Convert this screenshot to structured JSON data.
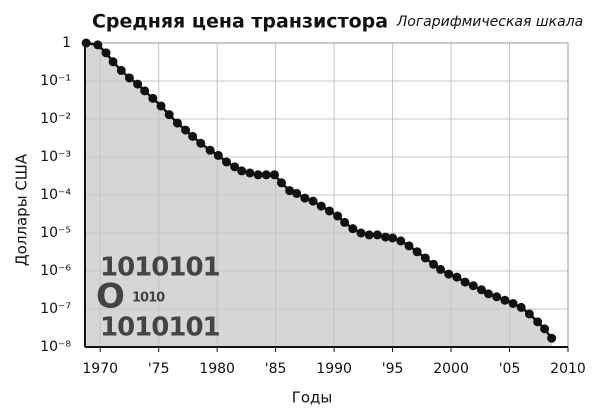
{
  "chart_data": {
    "type": "line",
    "title": "Средняя цена транзистора",
    "subtitle": "Логарифмическая шкала",
    "x_label": "Годы",
    "y_label": "Доллары США",
    "annotations": [
      "1010101",
      "O",
      "1010",
      "1010101"
    ],
    "log_y": true,
    "grid": true,
    "area": true,
    "series": [
      {
        "name": "Средняя цена транзистора",
        "color": "#111111",
        "fill": "#c8c8c8",
        "x": [
          1968.8,
          1969.8,
          1970.5,
          1971.1,
          1971.8,
          1972.5,
          1973.2,
          1973.8,
          1974.5,
          1975.2,
          1975.9,
          1976.6,
          1977.3,
          1977.9,
          1978.6,
          1979.4,
          1980.1,
          1980.8,
          1981.5,
          1982.1,
          1982.8,
          1983.5,
          1984.2,
          1984.9,
          1985.5,
          1986.2,
          1986.8,
          1987.5,
          1988.2,
          1988.9,
          1989.6,
          1990.3,
          1990.9,
          1991.6,
          1992.3,
          1993.0,
          1993.7,
          1994.4,
          1995.0,
          1995.7,
          1996.4,
          1997.1,
          1997.8,
          1998.5,
          1999.1,
          1999.8,
          2000.5,
          2001.2,
          2001.9,
          2002.6,
          2003.2,
          2003.9,
          2004.6,
          2005.3,
          2006.0,
          2006.7,
          2007.4,
          2008.0,
          2008.6
        ],
        "values": [
          1,
          0.89,
          0.55,
          0.32,
          0.19,
          0.12,
          0.083,
          0.055,
          0.035,
          0.022,
          0.013,
          0.0078,
          0.0051,
          0.0035,
          0.0023,
          0.0015,
          0.0011,
          0.00074,
          0.00055,
          0.00043,
          0.00038,
          0.00034,
          0.00034,
          0.00034,
          0.00021,
          0.00013,
          0.00011,
          8.3e-05,
          6.9e-05,
          5.1e-05,
          3.8e-05,
          2.8e-05,
          1.9e-05,
          1.3e-05,
          1e-05,
          8.9e-06,
          8.9e-06,
          7.8e-06,
          7.4e-06,
          6.2e-06,
          4.6e-06,
          3.2e-06,
          2.2e-06,
          1.5e-06,
          1.1e-06,
          8.3e-07,
          6.9e-07,
          5.1e-07,
          4.1e-07,
          3.2e-07,
          2.5e-07,
          2.1e-07,
          1.7e-07,
          1.4e-07,
          1.1e-07,
          7.4e-08,
          4.6e-08,
          3e-08,
          1.7e-08
        ]
      }
    ],
    "xlim": [
      1968.7,
      2010
    ],
    "xticks": [
      1970,
      {
        "value": 1975,
        "label": "'75"
      },
      1980,
      {
        "value": 1985,
        "label": "'85"
      },
      1990,
      {
        "value": 1995,
        "label": "'95"
      },
      2000,
      {
        "value": 2005,
        "label": "'05"
      },
      2010
    ],
    "ylim": [
      1e-08,
      1
    ],
    "yticks": [
      1,
      {
        "value": 0.1,
        "label": "10⁻¹"
      },
      {
        "value": 0.01,
        "label": "10⁻²"
      },
      {
        "value": 0.001,
        "label": "10⁻³"
      },
      {
        "value": 0.0001,
        "label": "10⁻⁴"
      },
      {
        "value": 1e-05,
        "label": "10⁻⁵"
      },
      {
        "value": 1e-06,
        "label": "10⁻⁶"
      },
      {
        "value": 1e-07,
        "label": "10⁻⁷"
      },
      {
        "value": 1e-08,
        "label": "10⁻⁸"
      }
    ]
  }
}
